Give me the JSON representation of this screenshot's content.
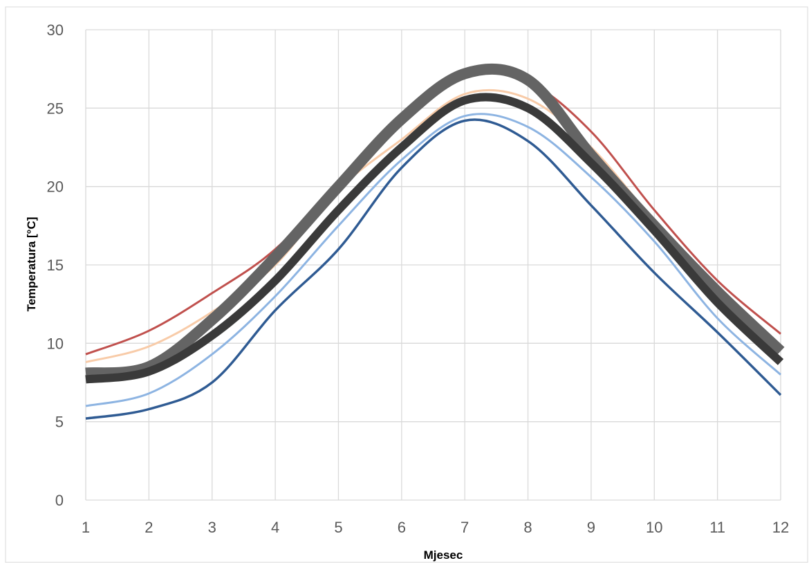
{
  "chart_data": {
    "type": "line",
    "title": "",
    "xlabel": "Mjesec",
    "ylabel": "Temperatura [°C]",
    "xlim": [
      1,
      12
    ],
    "ylim": [
      0,
      30
    ],
    "xticks": [
      "1",
      "2",
      "3",
      "4",
      "5",
      "6",
      "7",
      "8",
      "9",
      "10",
      "11",
      "12"
    ],
    "yticks": [
      "0",
      "5",
      "10",
      "15",
      "20",
      "25",
      "30"
    ],
    "grid": true,
    "legend": "none",
    "x": [
      1,
      2,
      3,
      4,
      5,
      6,
      7,
      8,
      9,
      10,
      11,
      12
    ],
    "series": [
      {
        "color": "#f8cba8",
        "width": 3,
        "values": [
          8.8,
          9.8,
          12.0,
          15.0,
          19.8,
          23.0,
          25.9,
          25.6,
          22.5,
          17.8,
          13.5,
          9.6
        ]
      },
      {
        "color": "#c0504d",
        "width": 3,
        "values": [
          9.3,
          10.8,
          13.2,
          16.0,
          20.3,
          24.5,
          27.2,
          26.7,
          23.5,
          18.5,
          14.0,
          10.6
        ]
      },
      {
        "color": "#8db4e2",
        "width": 3,
        "values": [
          6.0,
          6.8,
          9.3,
          13.0,
          17.5,
          21.7,
          24.5,
          23.8,
          20.6,
          16.5,
          11.6,
          8.0
        ]
      },
      {
        "color": "#2f5b93",
        "width": 3.5,
        "values": [
          5.2,
          5.8,
          7.5,
          12.1,
          16.0,
          21.2,
          24.2,
          22.9,
          18.8,
          14.5,
          10.7,
          6.7
        ]
      },
      {
        "color": "#646464",
        "width": 16,
        "values": [
          8.1,
          8.5,
          11.5,
          15.5,
          20.0,
          24.3,
          27.2,
          26.8,
          22.0,
          17.5,
          13.3,
          9.5
        ]
      },
      {
        "color": "#3a3a3a",
        "width": 12,
        "values": [
          7.7,
          8.2,
          10.5,
          14.0,
          18.5,
          22.5,
          25.5,
          25.0,
          21.5,
          17.2,
          12.6,
          8.8
        ]
      }
    ]
  }
}
